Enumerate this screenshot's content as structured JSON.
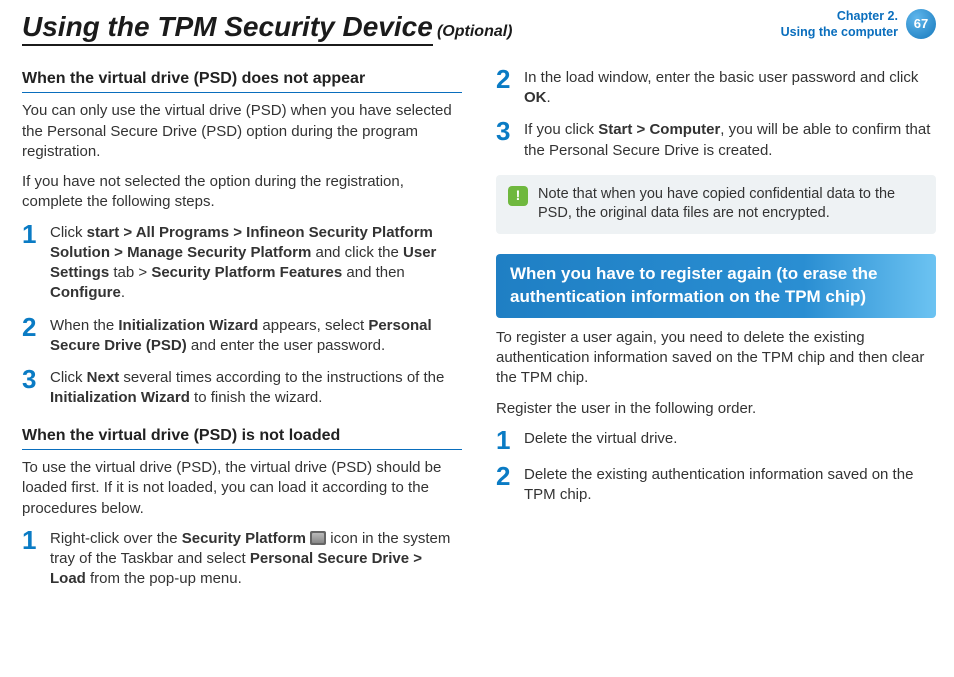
{
  "header": {
    "title_main": "Using the TPM Security Device",
    "title_optional": "(Optional)",
    "chapter_line1": "Chapter 2.",
    "chapter_line2": "Using the computer",
    "page_number": "67"
  },
  "left": {
    "section1_heading": "When the virtual drive (PSD) does not appear",
    "intro_p1": "You can only use the virtual drive (PSD) when you have selected the Personal Secure Drive (PSD) option during the program registration.",
    "intro_p2": " If you have not selected the option during the registration, complete the following steps.",
    "s1_step1_pre": "Click ",
    "s1_step1_bold1": "start > All Programs > Infineon Security Platform Solution > Manage Security Platform",
    "s1_step1_mid1": " and click the ",
    "s1_step1_bold2": "User Settings",
    "s1_step1_mid2": " tab > ",
    "s1_step1_bold3": "Security Platform Features",
    "s1_step1_mid3": " and then ",
    "s1_step1_bold4": "Configure",
    "s1_step1_end": ".",
    "s1_step2_pre": "When the ",
    "s1_step2_bold1": "Initialization Wizard",
    "s1_step2_mid1": " appears, select ",
    "s1_step2_bold2": "Personal Secure Drive (PSD)",
    "s1_step2_end": " and enter the user password.",
    "s1_step3_pre": "Click ",
    "s1_step3_bold1": "Next",
    "s1_step3_mid1": " several times according to the instructions of the ",
    "s1_step3_bold2": "Initialization Wizard",
    "s1_step3_end": " to finish the wizard.",
    "section2_heading": "When the virtual drive (PSD) is not loaded",
    "section2_intro": "To use the virtual drive (PSD), the virtual drive (PSD) should be loaded first. If it is not loaded, you can load it according to the procedures below.",
    "s2_step1_pre": "Right-click over the ",
    "s2_step1_bold1": "Security Platform",
    "s2_step1_mid1": " icon in the system tray of the Taskbar and select ",
    "s2_step1_bold2": "Personal Secure Drive > Load",
    "s2_step1_end": " from the pop-up menu."
  },
  "right": {
    "s2_step2_pre": "In the load window, enter the basic user password and click ",
    "s2_step2_bold1": "OK",
    "s2_step2_end": ".",
    "s2_step3_pre": "If you click ",
    "s2_step3_bold1": "Start > Computer",
    "s2_step3_end": ", you will be able to confirm that the Personal Secure Drive is created.",
    "note_text": "Note that when you have copied confidential data to the PSD, the original data files are not encrypted.",
    "banner_text": "When you have to register again (to erase the authentication information on the TPM chip)",
    "banner_body1": "To register a user again, you need to delete the existing authentication information saved on the TPM chip and then clear the TPM chip.",
    "banner_body2": "Register the user in the following order.",
    "r_step1": "Delete the virtual drive.",
    "r_step2": "Delete the existing authentication information saved on the TPM chip."
  },
  "nums": {
    "n1": "1",
    "n2": "2",
    "n3": "3"
  }
}
